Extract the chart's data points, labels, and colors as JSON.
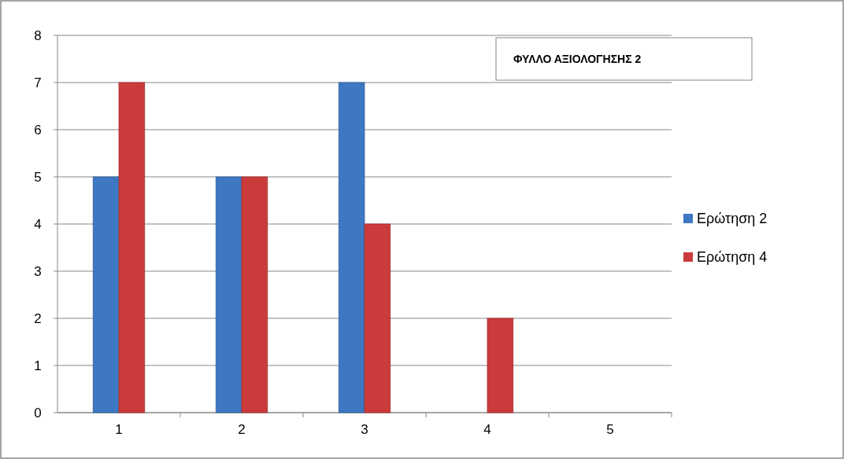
{
  "chart_data": {
    "type": "bar",
    "title": "ΦΥΛΛΟ ΑΞΙΟΛΟΓΗΣΗΣ 2",
    "categories": [
      "1",
      "2",
      "3",
      "4",
      "5"
    ],
    "series": [
      {
        "name": "Ερώτηση 2",
        "color": "#3e78c2",
        "values": [
          5,
          5,
          7,
          0,
          0
        ]
      },
      {
        "name": "Ερώτηση 4",
        "color": "#cc3b3b",
        "values": [
          7,
          5,
          4,
          2,
          0
        ]
      }
    ],
    "ylim": [
      0,
      8
    ],
    "yticks": [
      0,
      1,
      2,
      3,
      4,
      5,
      6,
      7,
      8
    ],
    "grid": "y",
    "legend": "right"
  }
}
